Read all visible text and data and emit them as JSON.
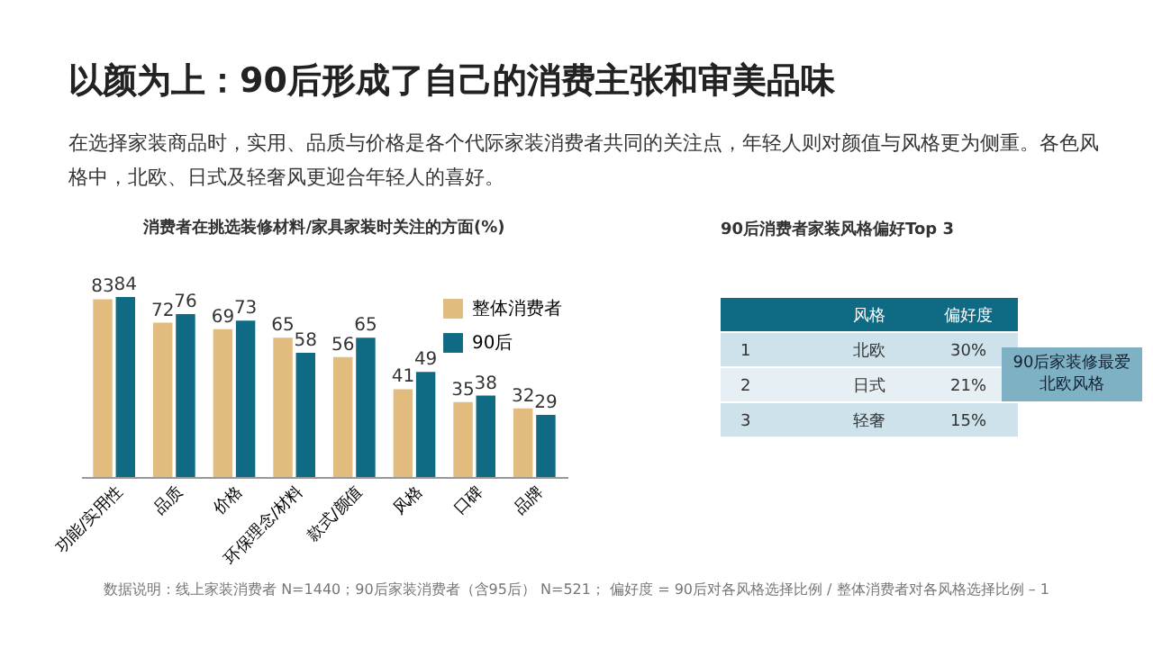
{
  "chart_data": [
    {
      "type": "bar",
      "title": "消费者在挑选装修材料/家具家装时关注的方面(%)",
      "categories": [
        "功能/实用性",
        "品质",
        "价格",
        "环保理念/材料",
        "款式/颜值",
        "风格",
        "口碑",
        "品牌"
      ],
      "series": [
        {
          "name": "整体消费者",
          "color": "#e2bb7e",
          "values": [
            83,
            72,
            69,
            65,
            56,
            41,
            35,
            32
          ]
        },
        {
          "name": "90后",
          "color": "#0f6a83",
          "values": [
            84,
            76,
            73,
            58,
            65,
            49,
            38,
            29
          ]
        }
      ],
      "data_labels": true,
      "legend": "top right",
      "annotations": [
        "以颜为上：90后形成了自己的消费主张和审美品味",
        "在选择家装商品时，实用、品质与价格是各个代际家装消费者共同的关注点，年轻人则对颜值与风格更为侧重。各色风格中，北欧、日式及轻奢风更迎合年轻人的喜好。",
        "数据说明：线上家装消费者 N=1440；90后家装消费者（含95后） N=521； 偏好度 = 90后对各风格选择比例 / 整体消费者对各风格选择比例 – 1"
      ]
    },
    {
      "type": "other",
      "title": "90后消费者家装风格偏好Top 3",
      "y_categories": [
        "1",
        "2",
        "3"
      ],
      "categories": [
        "北欧",
        "日式",
        "轻奢"
      ],
      "value_labels": [
        "30%",
        "21%",
        "15%"
      ],
      "xlabel": "风格",
      "ylabel": "偏好度",
      "annotations": [
        "90后家装修最爱北欧风格"
      ]
    }
  ]
}
